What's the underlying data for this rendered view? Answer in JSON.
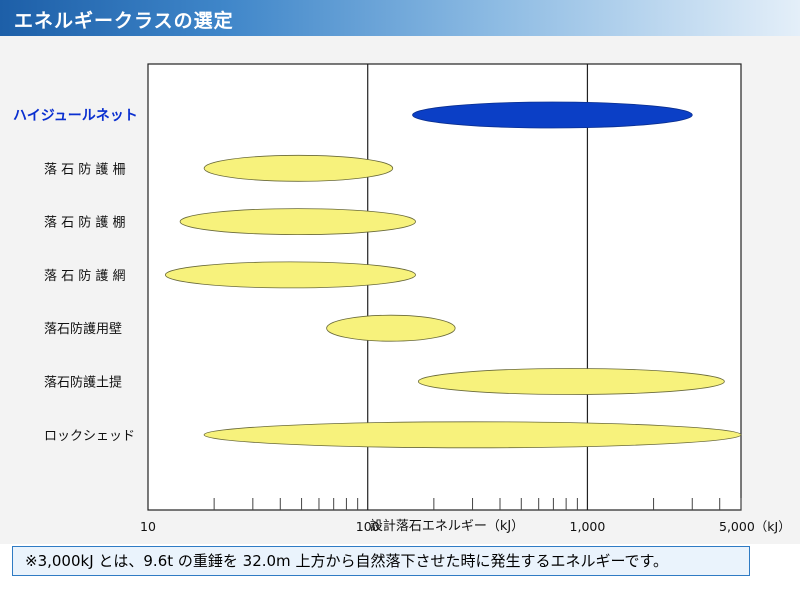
{
  "title": "エネルギークラスの選定",
  "note": "※3,000kJ とは、9.6t の重錘を 32.0m 上方から自然落下させた時に発生するエネルギーです。",
  "colors": {
    "highlight_fill": "#0b3fc6",
    "bar_fill": "#f7f27c",
    "bar_stroke": "#6a6a3a",
    "highlight_label": "#0a2fd0"
  },
  "chart_data": {
    "type": "range-bar",
    "x_scale": "log",
    "xlim": [
      10,
      5000
    ],
    "xlabel": "設計落石エネルギー（kJ）",
    "x_tick_labels": [
      {
        "value": 10,
        "label": "10"
      },
      {
        "value": 100,
        "label": "100"
      },
      {
        "value": 1000,
        "label": "1,000"
      },
      {
        "value": 5000,
        "label": "5,000（kJ）"
      }
    ],
    "major_gridlines": [
      100,
      1000
    ],
    "categories": [
      {
        "label": "ハイジュールネット",
        "min": 160,
        "max": 3000,
        "highlight": true
      },
      {
        "label": "落 石 防 護 柵",
        "min": 18,
        "max": 130,
        "highlight": false
      },
      {
        "label": "落 石 防 護 棚",
        "min": 14,
        "max": 165,
        "highlight": false
      },
      {
        "label": "落 石 防 護 網",
        "min": 12,
        "max": 165,
        "highlight": false
      },
      {
        "label": "落石防護用壁",
        "min": 65,
        "max": 250,
        "highlight": false
      },
      {
        "label": "落石防護土提",
        "min": 170,
        "max": 4200,
        "highlight": false
      },
      {
        "label": "ロックシェッド",
        "min": 18,
        "max": 5000,
        "highlight": false
      }
    ]
  }
}
